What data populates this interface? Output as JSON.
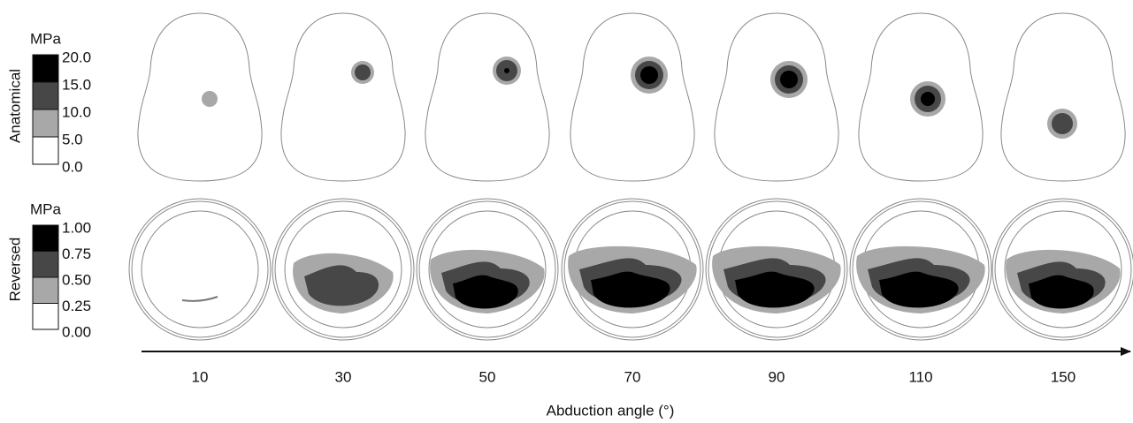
{
  "rows": [
    {
      "label": "Anatomical",
      "legend": {
        "unit": "MPa",
        "ticks": [
          "20.0",
          "15.0",
          "10.0",
          "5.0",
          "0.0"
        ]
      }
    },
    {
      "label": "Reversed",
      "legend": {
        "unit": "MPa",
        "ticks": [
          "1.00",
          "0.75",
          "0.50",
          "0.25",
          "0.00"
        ]
      }
    }
  ],
  "x_axis": {
    "label": "Abduction angle (°)",
    "ticks": [
      "10",
      "30",
      "50",
      "70",
      "90",
      "110",
      "150"
    ]
  }
}
